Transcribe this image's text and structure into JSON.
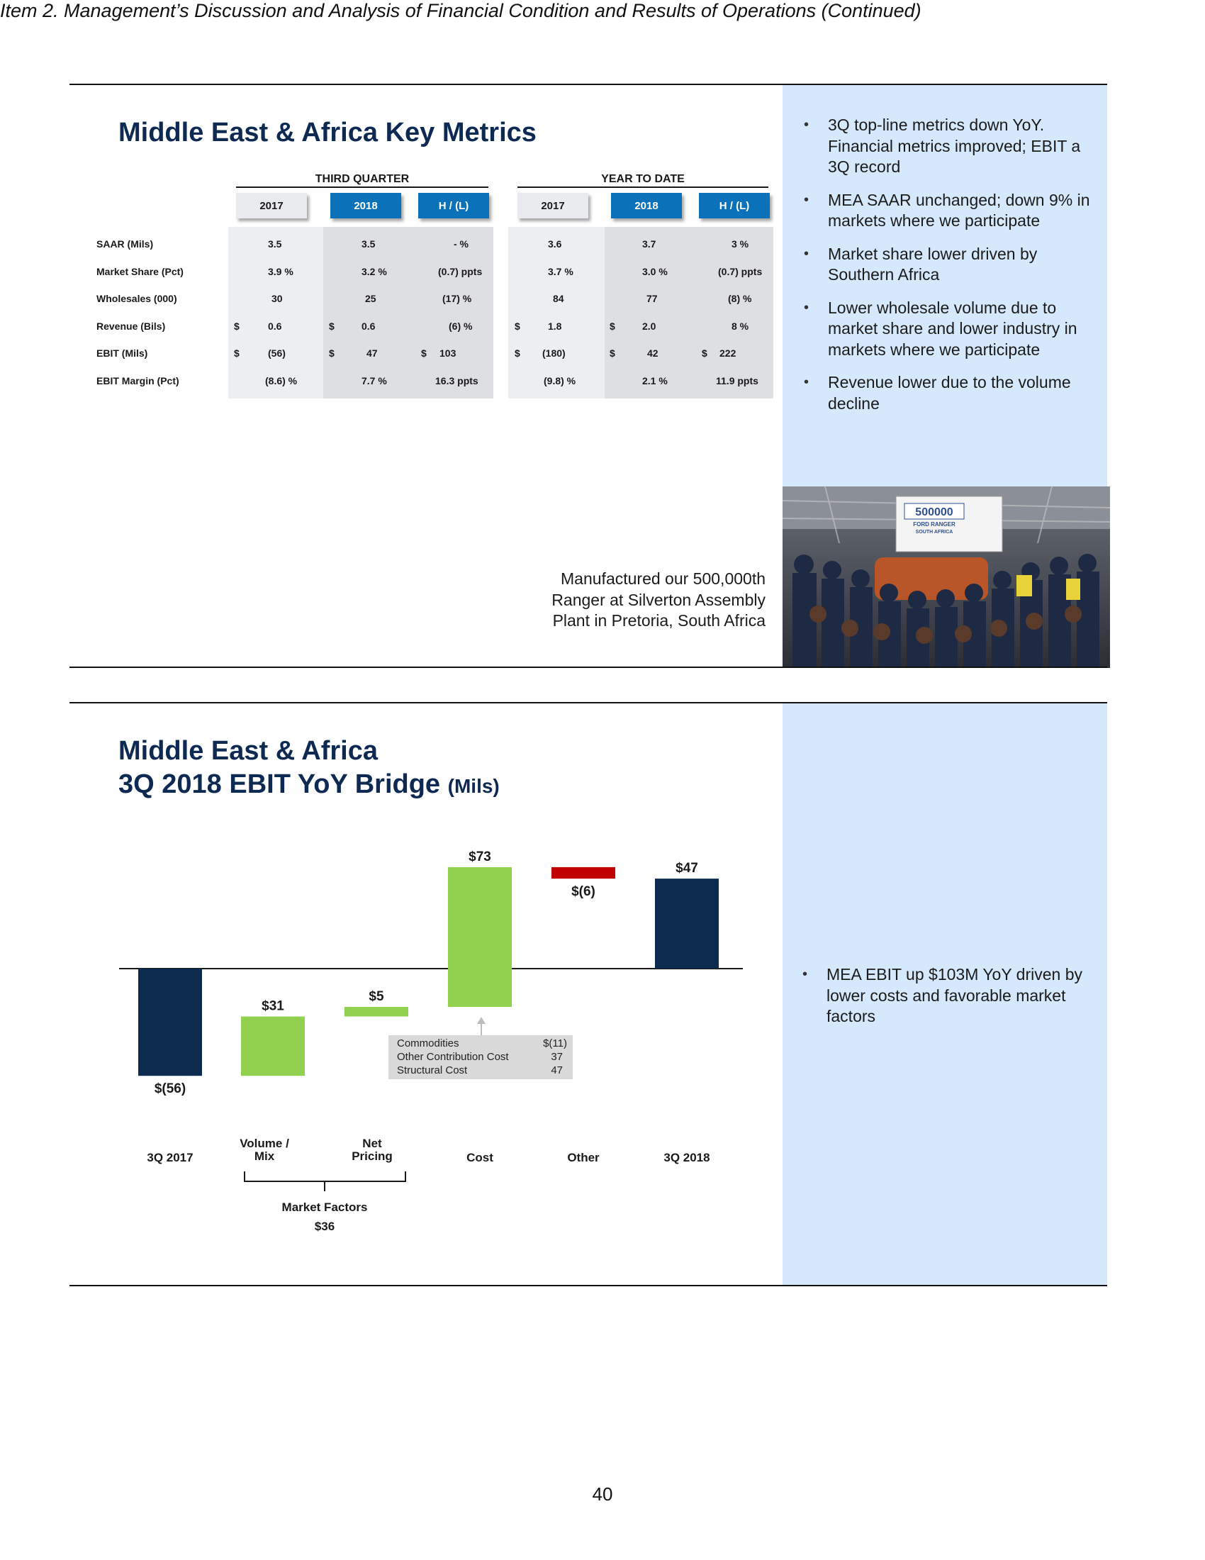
{
  "header": {
    "title": "Item 2.  Management’s Discussion and Analysis of Financial Condition and Results of Operations (Continued)"
  },
  "metrics_slide": {
    "title": "Middle East & Africa Key Metrics",
    "groups": [
      "THIRD QUARTER",
      "YEAR TO DATE"
    ],
    "col_headers": [
      "2017",
      "2018",
      "H / (L)",
      "2017",
      "2018",
      "H / (L)"
    ],
    "rows": [
      {
        "label": "SAAR (Mils)",
        "cells": [
          "3.5",
          "3.5",
          "-  %",
          "3.6",
          "3.7",
          "3  %"
        ]
      },
      {
        "label": "Market Share (Pct)",
        "cells": [
          "3.9  %",
          "3.2  %",
          "(0.7) ppts",
          "3.7  %",
          "3.0  %",
          "(0.7) ppts"
        ]
      },
      {
        "label": "Wholesales (000)",
        "cells": [
          "30",
          "25",
          "(17) %",
          "84",
          "77",
          "(8) %"
        ]
      },
      {
        "label": "Revenue (Bils)",
        "cells": [
          "0.6",
          "0.6",
          "(6) %",
          "1.8",
          "2.0",
          "8  %"
        ]
      },
      {
        "label": "EBIT (Mils)",
        "cells": [
          "(56)",
          "47",
          "103",
          "(180)",
          "42",
          "222"
        ]
      },
      {
        "label": "EBIT Margin (Pct)",
        "cells": [
          "(8.6)  %",
          "7.7  %",
          "16.3  ppts",
          "(9.8) %",
          "2.1  %",
          "11.9  ppts"
        ]
      }
    ],
    "dollar_sign": "$",
    "bullets": [
      "3Q top-line metrics down YoY. Financial metrics improved; EBIT a 3Q record",
      "MEA SAAR unchanged; down 9% in markets where we participate",
      "Market share lower driven by Southern Africa",
      "Lower wholesale volume due to market share and lower industry in markets where we participate",
      "Revenue lower due to the volume decline"
    ],
    "photo_caption": "Manufactured our 500,000th Ranger at Silverton Assembly Plant in Pretoria, South Africa",
    "photo_banner": {
      "line1": "500000",
      "line2": "FORD RANGER",
      "line3": "SOUTH AFRICA"
    }
  },
  "bridge_slide": {
    "title_line1": "Middle East & Africa",
    "title_line2": "3Q 2018 EBIT YoY Bridge",
    "title_units": "(Mils)",
    "bullets": [
      "MEA EBIT up $103M YoY driven by lower costs and favorable market factors"
    ],
    "cost_breakdown": [
      {
        "label": "Commodities",
        "value": "$(11)"
      },
      {
        "label": "Other Contribution Cost",
        "value": "37"
      },
      {
        "label": "Structural Cost",
        "value": "47"
      }
    ],
    "market_factors": {
      "label": "Market Factors",
      "value": "$36"
    }
  },
  "chart_data": {
    "type": "bar",
    "subtype": "waterfall",
    "categories": [
      "3Q 2017",
      "Volume / Mix",
      "Net Pricing",
      "Cost",
      "Other",
      "3Q 2018"
    ],
    "values": [
      -56,
      31,
      5,
      73,
      -6,
      47
    ],
    "kinds": [
      "total",
      "delta",
      "delta",
      "delta",
      "delta",
      "total"
    ],
    "data_labels": [
      "$(56)",
      "$31",
      "$5",
      "$73",
      "$(6)",
      "$47"
    ],
    "colors": {
      "total": "#0d2a4f",
      "increase": "#92d050",
      "decrease": "#c00000"
    },
    "ylim": [
      -60,
      82
    ]
  },
  "page": {
    "number": "40"
  }
}
